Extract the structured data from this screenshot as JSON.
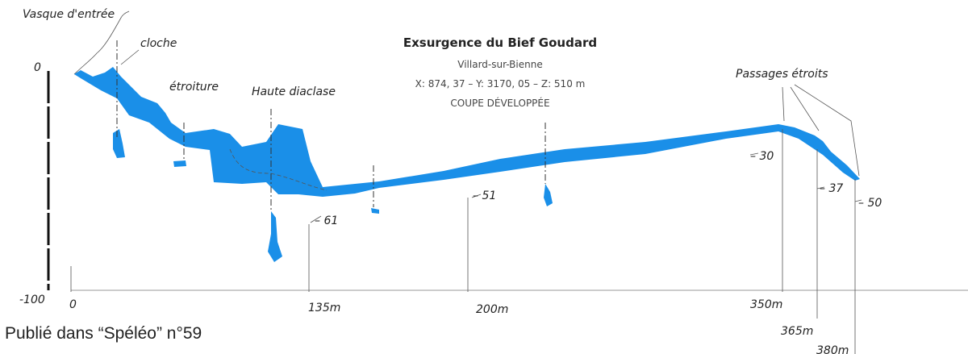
{
  "header": {
    "title": "Exsurgence du Bief Goudard",
    "location": "Villard-sur-Bienne",
    "coordinates": "X: 874, 37 – Y: 3170, 05 – Z: 510 m",
    "section": "COUPE DÉVELOPPÉE"
  },
  "labels": [
    "Vasque d'entrée",
    "cloche",
    "étroiture",
    "Haute diaclase",
    "Passages étroits"
  ],
  "depths": [
    "0",
    "-100",
    "– 61",
    "– 51",
    "– 30",
    "– 37",
    "– 50"
  ],
  "distances": [
    "0",
    "135m",
    "200m",
    "350m",
    "365m",
    "380m"
  ],
  "caption": "Publié dans “Spéléo” n°59"
}
